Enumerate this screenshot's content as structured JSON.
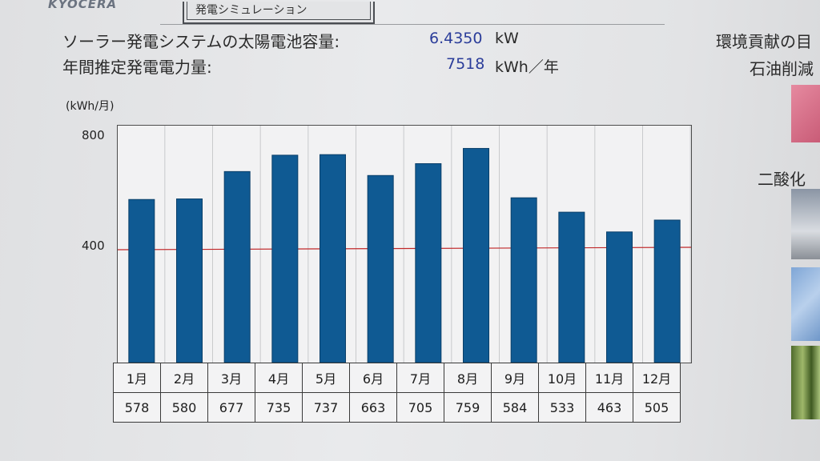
{
  "header": {
    "logo": "KYOCERA",
    "tab_title": "発電シミュレーション"
  },
  "summary": {
    "capacity_label": "ソーラー発電システムの太陽電池容量:",
    "capacity_value": "6.4350",
    "capacity_unit": "kW",
    "annual_label": "年間推定発電電力量:",
    "annual_value": "7518",
    "annual_unit": "kWh／年"
  },
  "side": {
    "env_title": "環境貢献の目",
    "oil_label": "石油削減",
    "co2_label": "二酸化"
  },
  "chart_data": {
    "type": "bar",
    "ylabel": "(kWh/月)",
    "ylim": [
      0,
      800
    ],
    "yticks": [
      "800",
      "400"
    ],
    "reference_line": 400,
    "reference_color": "#c0282a",
    "bar_color": "#0f5a93",
    "categories": [
      "1月",
      "2月",
      "3月",
      "4月",
      "5月",
      "6月",
      "7月",
      "8月",
      "9月",
      "10月",
      "11月",
      "12月"
    ],
    "values": [
      578,
      580,
      677,
      735,
      737,
      663,
      705,
      759,
      584,
      533,
      463,
      505
    ]
  }
}
